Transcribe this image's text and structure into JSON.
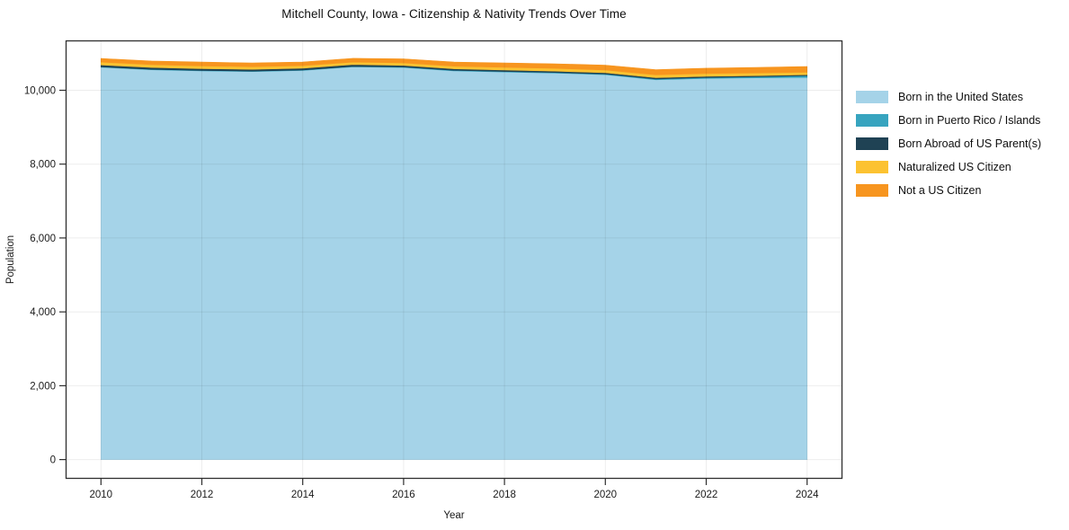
{
  "page": {
    "background": "#ffffff",
    "text_color": "#1a1a1a",
    "axis_border_color": "#2e2e2e",
    "gridline_color": "rgba(0,0,0,0.07)"
  },
  "chart_data": {
    "type": "area",
    "stacked": true,
    "title": "Mitchell County, Iowa - Citizenship & Nativity Trends Over Time",
    "xlabel": "Year",
    "ylabel": "Population",
    "x": [
      2010,
      2011,
      2012,
      2013,
      2014,
      2015,
      2016,
      2017,
      2018,
      2019,
      2020,
      2021,
      2022,
      2023,
      2024
    ],
    "series": [
      {
        "name": "Born in the United States",
        "color": "#a5d3e8",
        "values": [
          10620,
          10555,
          10525,
          10505,
          10535,
          10635,
          10615,
          10525,
          10495,
          10465,
          10420,
          10285,
          10320,
          10335,
          10345
        ]
      },
      {
        "name": "Born in Puerto Rico / Islands",
        "color": "#37a4bf",
        "values": [
          12,
          12,
          12,
          12,
          12,
          12,
          14,
          14,
          14,
          16,
          18,
          22,
          26,
          32,
          48
        ]
      },
      {
        "name": "Born Abroad of US Parent(s)",
        "color": "#1f4254",
        "values": [
          55,
          52,
          50,
          50,
          52,
          50,
          46,
          42,
          40,
          38,
          36,
          34,
          32,
          30,
          28
        ]
      },
      {
        "name": "Naturalized US Citizen",
        "color": "#fcc231",
        "values": [
          78,
          74,
          72,
          70,
          68,
          66,
          68,
          70,
          72,
          74,
          76,
          78,
          76,
          72,
          68
        ]
      },
      {
        "name": "Not a US Citizen",
        "color": "#f7951f",
        "values": [
          96,
          100,
          104,
          102,
          100,
          102,
          108,
          114,
          118,
          124,
          130,
          138,
          144,
          150,
          156
        ]
      }
    ],
    "xlim": [
      2009.3,
      2024.7
    ],
    "ylim": [
      -520,
      11350
    ],
    "x_ticks": [
      2010,
      2012,
      2014,
      2016,
      2018,
      2020,
      2022,
      2024
    ],
    "x_tick_labels": [
      "2010",
      "2012",
      "2014",
      "2016",
      "2018",
      "2020",
      "2022",
      "2024"
    ],
    "y_ticks": [
      0,
      2000,
      4000,
      6000,
      8000,
      10000
    ],
    "y_tick_labels": [
      "0",
      "2,000",
      "4,000",
      "6,000",
      "8,000",
      "10,000"
    ],
    "grid": true,
    "legend_position": "right"
  }
}
